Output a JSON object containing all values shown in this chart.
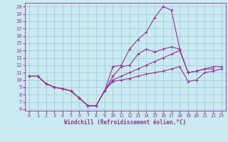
{
  "background_color": "#c8eaf0",
  "grid_color": "#a0c8d8",
  "line_color": "#993399",
  "xlabel": "Windchill (Refroidissement éolien,°C)",
  "xlim": [
    -0.5,
    23.5
  ],
  "ylim": [
    5.8,
    20.5
  ],
  "xticks": [
    0,
    1,
    2,
    3,
    4,
    5,
    6,
    7,
    8,
    9,
    10,
    11,
    12,
    13,
    14,
    15,
    16,
    17,
    18,
    19,
    20,
    21,
    22,
    23
  ],
  "yticks": [
    6,
    7,
    8,
    9,
    10,
    11,
    12,
    13,
    14,
    15,
    16,
    17,
    18,
    19,
    20
  ],
  "series": [
    {
      "x": [
        0,
        1,
        2,
        3,
        4,
        5,
        6,
        7,
        8,
        9,
        10,
        11,
        12,
        13,
        14,
        15,
        16,
        17,
        18,
        19,
        20,
        21,
        22,
        23
      ],
      "y": [
        10.5,
        10.5,
        9.5,
        9.0,
        8.8,
        8.5,
        7.5,
        6.5,
        6.5,
        8.5,
        11.8,
        12.0,
        14.2,
        15.5,
        16.5,
        18.5,
        20.0,
        19.5,
        14.2,
        null,
        null,
        null,
        null,
        null
      ]
    },
    {
      "x": [
        0,
        1,
        2,
        3,
        4,
        5,
        6,
        7,
        8,
        9,
        10,
        11,
        12,
        13,
        14,
        15,
        16,
        17,
        18,
        19,
        20,
        21,
        22,
        23
      ],
      "y": [
        10.5,
        10.5,
        9.5,
        9.0,
        8.8,
        8.5,
        7.5,
        6.5,
        6.5,
        8.5,
        10.5,
        11.8,
        12.0,
        13.5,
        14.2,
        13.8,
        14.2,
        14.5,
        14.2,
        11.0,
        11.2,
        11.5,
        11.5,
        null
      ]
    },
    {
      "x": [
        0,
        1,
        2,
        3,
        4,
        5,
        6,
        7,
        8,
        9,
        10,
        11,
        12,
        13,
        14,
        15,
        16,
        17,
        18,
        19,
        20,
        21,
        22,
        23
      ],
      "y": [
        10.5,
        10.5,
        9.5,
        9.0,
        8.8,
        8.5,
        7.5,
        6.5,
        6.5,
        8.5,
        10.0,
        10.5,
        11.0,
        11.5,
        12.0,
        12.5,
        13.0,
        13.5,
        14.0,
        11.0,
        11.2,
        11.5,
        11.8,
        11.8
      ]
    },
    {
      "x": [
        0,
        1,
        2,
        3,
        4,
        5,
        6,
        7,
        8,
        9,
        10,
        11,
        12,
        13,
        14,
        15,
        16,
        17,
        18,
        19,
        20,
        21,
        22,
        23
      ],
      "y": [
        10.5,
        10.5,
        9.5,
        9.0,
        8.8,
        8.5,
        7.5,
        6.5,
        6.5,
        8.5,
        9.8,
        10.0,
        10.2,
        10.5,
        10.8,
        11.0,
        11.2,
        11.5,
        11.8,
        9.8,
        10.0,
        11.0,
        11.2,
        11.5
      ]
    }
  ]
}
